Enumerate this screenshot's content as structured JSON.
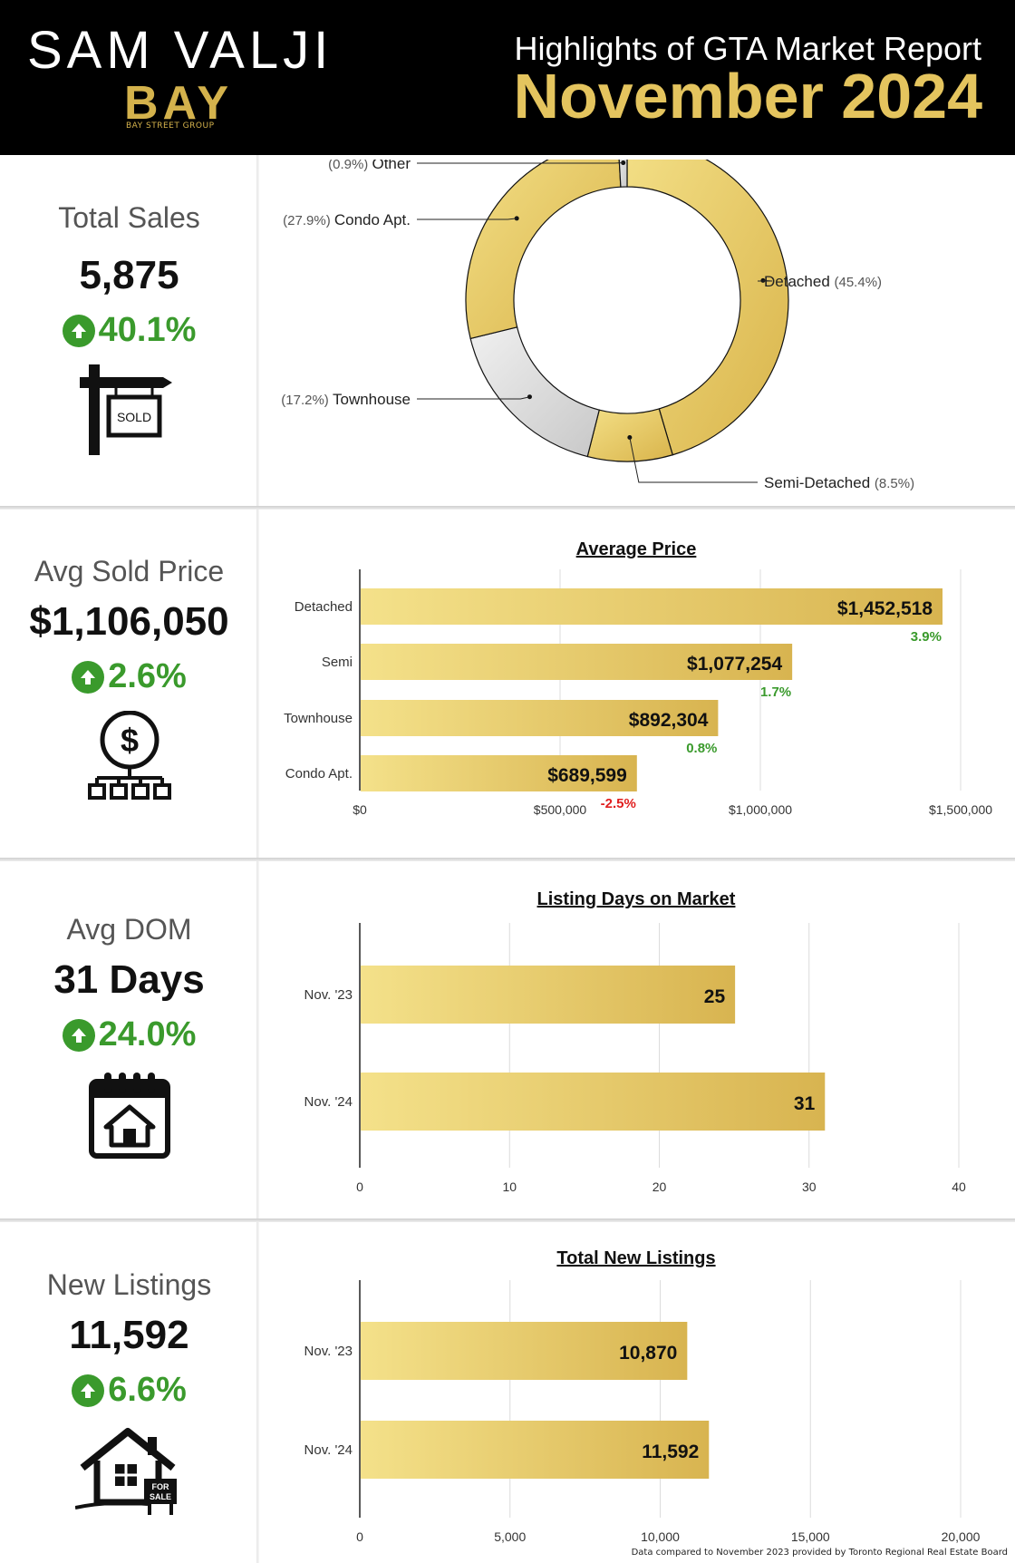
{
  "header": {
    "agent_name": "SAM VALJI",
    "logo": "BAY",
    "logo_sub": "BAY STREET GROUP",
    "title": "Highlights of GTA Market Report",
    "month": "November 2024"
  },
  "colors": {
    "gold": "#e4c45e",
    "green": "#3a9a2c",
    "red": "#e01f1f",
    "gray": "#d3d3d3"
  },
  "kpis": {
    "sales": {
      "label": "Total Sales",
      "value": "5,875",
      "change": "40.1%",
      "direction": "up",
      "icon": "sold-sign-icon",
      "icon_text": "SOLD"
    },
    "price": {
      "label": "Avg Sold Price",
      "value": "$1,106,050",
      "change": "2.6%",
      "direction": "up",
      "icon": "dollar-network-icon"
    },
    "dom": {
      "label": "Avg DOM",
      "value": "31 Days",
      "change": "24.0%",
      "direction": "up",
      "icon": "calendar-house-icon"
    },
    "listings": {
      "label": "New Listings",
      "value": "11,592",
      "change": "6.6%",
      "direction": "up",
      "icon": "house-for-sale-icon",
      "icon_text_1": "FOR",
      "icon_text_2": "SALE"
    }
  },
  "chart_data": [
    {
      "type": "pie",
      "title": "",
      "donut": true,
      "slices": [
        {
          "label": "Detached",
          "pct_label": "(45.4%)",
          "value": 45.4,
          "color": "gold"
        },
        {
          "label": "Semi-Detached",
          "pct_label": "(8.5%)",
          "value": 8.5,
          "color": "gold"
        },
        {
          "label": "Townhouse",
          "pct_label": "(17.2%)",
          "value": 17.2,
          "color": "gray"
        },
        {
          "label": "Condo Apt.",
          "pct_label": "(27.9%)",
          "value": 27.9,
          "color": "gold"
        },
        {
          "label": "Other",
          "pct_label": "(0.9%)",
          "value": 0.9,
          "color": "gray"
        }
      ]
    },
    {
      "type": "bar",
      "orientation": "horizontal",
      "title": "Average Price",
      "categories": [
        "Detached",
        "Semi",
        "Townhouse",
        "Condo Apt."
      ],
      "values": [
        1452518,
        1077254,
        892304,
        689599
      ],
      "value_labels": [
        "$1,452,518",
        "$1,077,254",
        "$892,304",
        "$689,599"
      ],
      "change_labels": [
        "3.9%",
        "1.7%",
        "0.8%",
        "-2.5%"
      ],
      "change_colors": [
        "green",
        "green",
        "green",
        "red"
      ],
      "xlim": [
        0,
        1500000
      ],
      "xticks": [
        0,
        500000,
        1000000,
        1500000
      ],
      "xtick_labels": [
        "$0",
        "$500,000",
        "$1,000,000",
        "$1,500,000"
      ],
      "grid": true
    },
    {
      "type": "bar",
      "orientation": "horizontal",
      "title": "Listing Days on Market",
      "categories": [
        "Nov. '23",
        "Nov. '24"
      ],
      "values": [
        25,
        31
      ],
      "value_labels": [
        "25",
        "31"
      ],
      "xlim": [
        0,
        40
      ],
      "xticks": [
        0,
        10,
        20,
        30,
        40
      ],
      "xtick_labels": [
        "0",
        "10",
        "20",
        "30",
        "40"
      ],
      "grid": true
    },
    {
      "type": "bar",
      "orientation": "horizontal",
      "title": "Total New Listings",
      "categories": [
        "Nov. '23",
        "Nov. '24"
      ],
      "values": [
        10870,
        11592
      ],
      "value_labels": [
        "10,870",
        "11,592"
      ],
      "xlim": [
        0,
        20000
      ],
      "xticks": [
        0,
        5000,
        10000,
        15000,
        20000
      ],
      "xtick_labels": [
        "0",
        "5,000",
        "10,000",
        "15,000",
        "20,000"
      ],
      "grid": true
    }
  ],
  "footnote": "Data compared to November 2023 provided by Toronto Regional Real Estate Board"
}
